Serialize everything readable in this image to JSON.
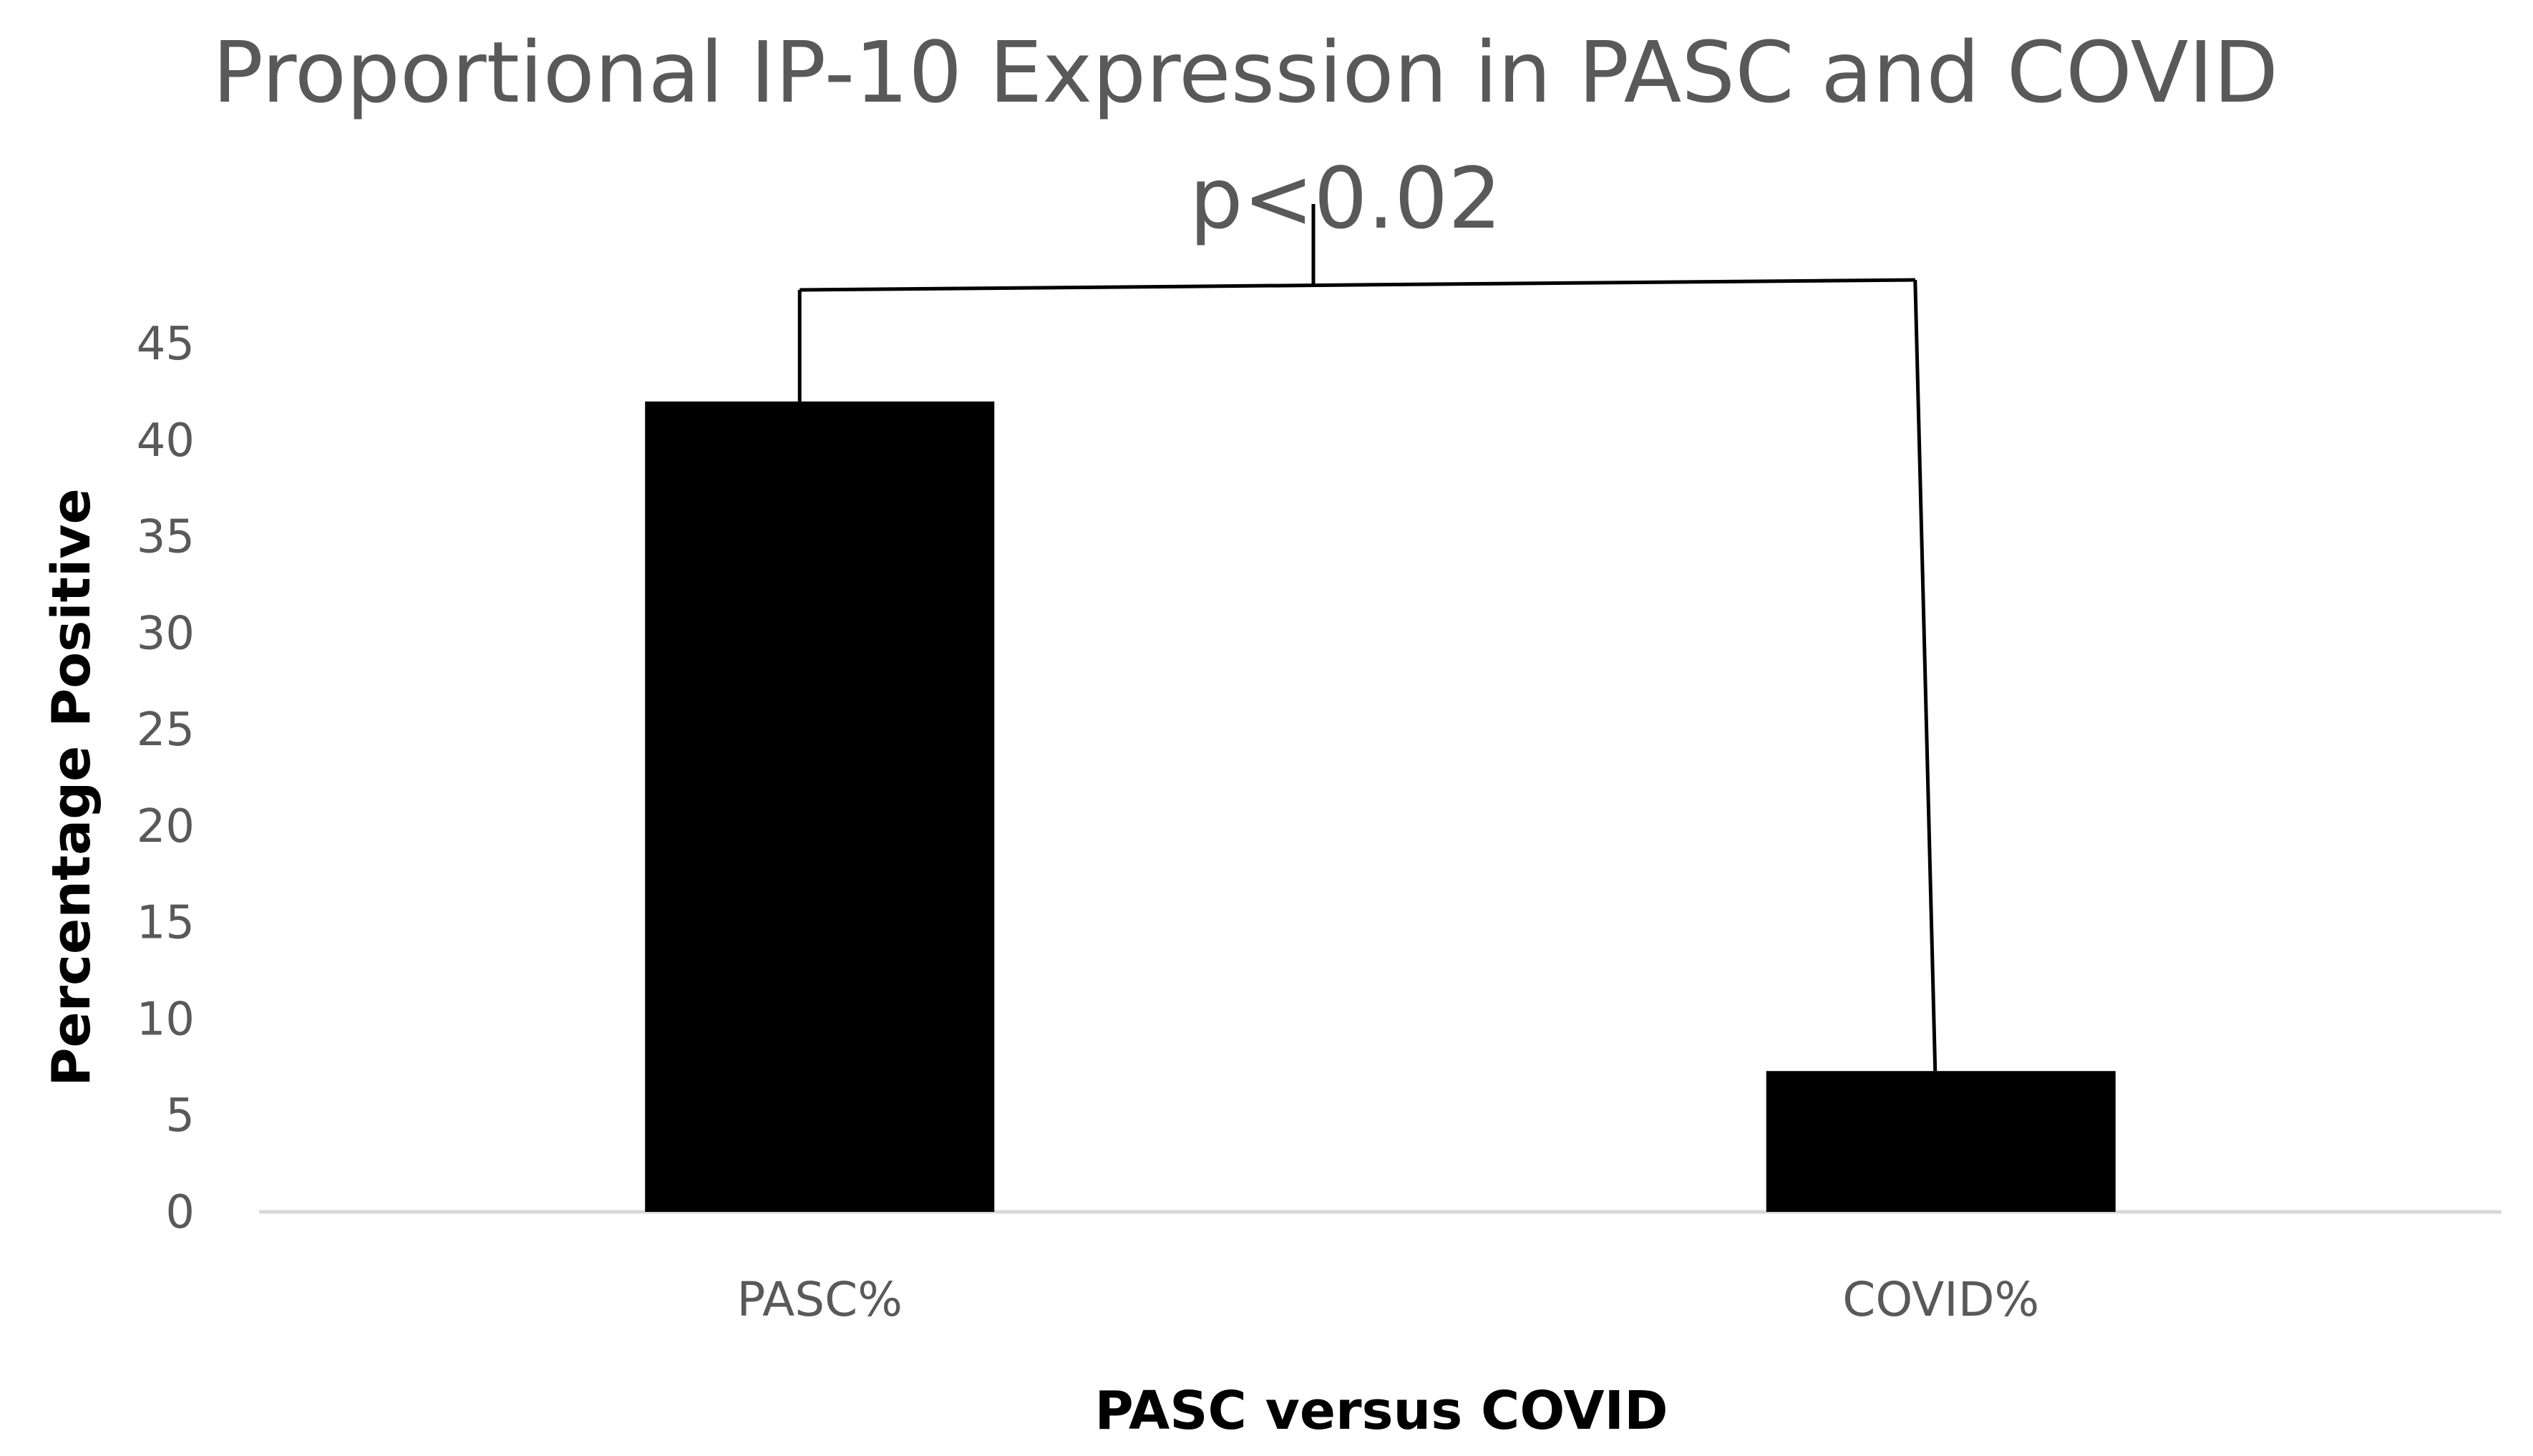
{
  "chart_data": {
    "type": "bar",
    "title": "Proportional IP-10 Expression in PASC and COVID",
    "categories": [
      "PASC%",
      "COVID%"
    ],
    "values": [
      42,
      7.3
    ],
    "xlabel": "PASC versus COVID",
    "ylabel": "Percentage Positive",
    "ylim": [
      0,
      45
    ],
    "yticks": [
      0,
      5,
      10,
      15,
      20,
      25,
      30,
      35,
      40,
      45
    ],
    "grid": false,
    "legend": "none",
    "bar_color": "#000000",
    "annotations": [
      {
        "text": "p<0.02",
        "type": "significance-bracket",
        "between": [
          "PASC%",
          "COVID%"
        ]
      }
    ]
  }
}
